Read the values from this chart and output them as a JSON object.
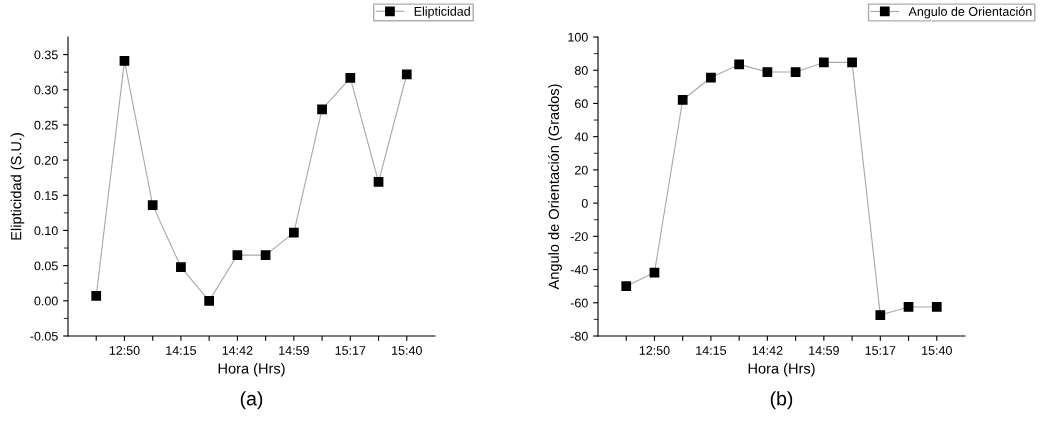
{
  "chart_data": [
    {
      "type": "line",
      "xlabel": "Hora (Hrs)",
      "ylabel": "Elipticidad (S.U.)",
      "annotations": [
        "(a)"
      ],
      "categories": [
        null,
        "12:50",
        null,
        "14:15",
        null,
        "14:42",
        null,
        "14:59",
        null,
        "15:17",
        null,
        "15:40"
      ],
      "series": [
        {
          "name": "Elipticidad",
          "color": "#000000",
          "values": [
            0.007,
            0.341,
            0.136,
            0.048,
            0.0,
            0.065,
            0.065,
            0.097,
            0.272,
            0.317,
            0.169,
            0.322
          ]
        }
      ],
      "ylim": [
        -0.05,
        0.375
      ],
      "yticks": [
        {
          "value": -0.05,
          "label": "-0.05"
        },
        {
          "value": 0,
          "label": "0.00"
        },
        {
          "value": 0.05,
          "label": "0.05"
        },
        {
          "value": 0.1,
          "label": "0.10"
        },
        {
          "value": 0.15,
          "label": "0.15"
        },
        {
          "value": 0.2,
          "label": "0.20"
        },
        {
          "value": 0.25,
          "label": "0.25"
        },
        {
          "value": 0.3,
          "label": "0.30"
        },
        {
          "value": 0.35,
          "label": "0.35"
        }
      ],
      "marker": "square",
      "line_style": "solid",
      "grid": false,
      "legend": "top right"
    },
    {
      "type": "line",
      "xlabel": "Hora (Hrs)",
      "ylabel": "Angulo de Orientación (Grados)",
      "annotations": [
        "(b)"
      ],
      "categories": [
        null,
        "12:50",
        null,
        "14:15",
        null,
        "14:42",
        null,
        "14:59",
        null,
        "15:17",
        null,
        "15:40"
      ],
      "series": [
        {
          "name": "Angulo de Orientación",
          "color": "#000000",
          "values": [
            -50.0,
            -41.8,
            62.1,
            75.6,
            83.5,
            78.9,
            78.9,
            84.7,
            84.7,
            -67.4,
            -62.5,
            -62.5
          ]
        }
      ],
      "ylim": [
        -80,
        100
      ],
      "yticks": [
        -80,
        -60,
        -40,
        -20,
        0,
        20,
        40,
        60,
        80,
        100
      ],
      "marker": "square",
      "line_style": "solid",
      "grid": false,
      "legend": "top right"
    }
  ]
}
